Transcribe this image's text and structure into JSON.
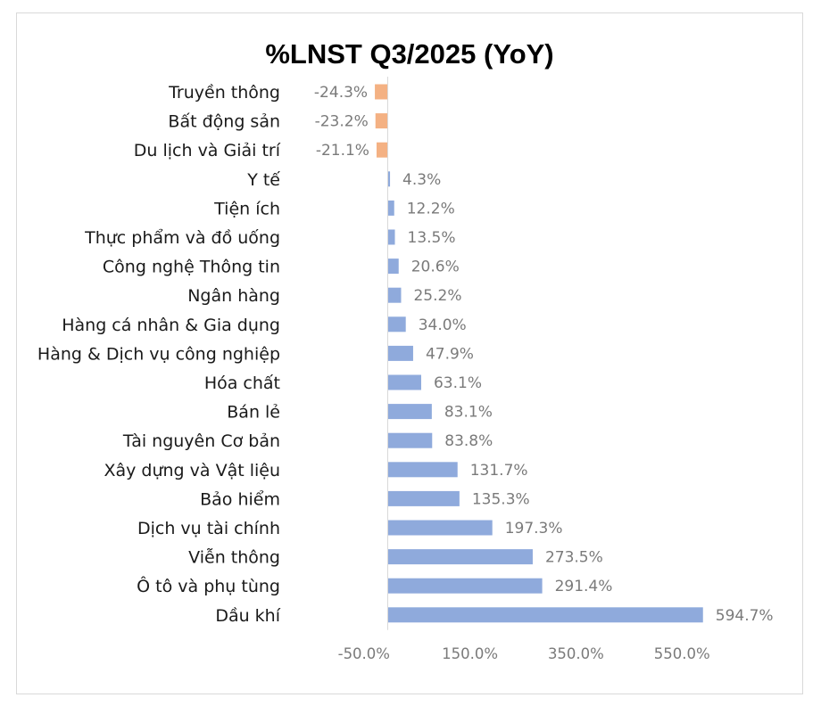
{
  "chart_data": {
    "type": "bar",
    "orientation": "horizontal",
    "title": "%LNST Q3/2025 (YoY)",
    "categories": [
      "Truyền thông",
      "Bất động sản",
      "Du lịch và Giải trí",
      "Y tế",
      "Tiện ích",
      "Thực phẩm và đồ uống",
      "Công nghệ Thông tin",
      "Ngân hàng",
      "Hàng cá nhân & Gia dụng",
      "Hàng & Dịch vụ công nghiệp",
      "Hóa chất",
      "Bán lẻ",
      "Tài nguyên Cơ bản",
      "Xây dựng và Vật liệu",
      "Bảo hiểm",
      "Dịch vụ tài chính",
      "Viễn thông",
      "Ô tô và phụ tùng",
      "Dầu khí"
    ],
    "values": [
      -24.3,
      -23.2,
      -21.1,
      4.3,
      12.2,
      13.5,
      20.6,
      25.2,
      34.0,
      47.9,
      63.1,
      83.1,
      83.8,
      131.7,
      135.3,
      197.3,
      273.5,
      291.4,
      594.7
    ],
    "value_labels": [
      "-24.3%",
      "-23.2%",
      "-21.1%",
      "4.3%",
      "12.2%",
      "13.5%",
      "20.6%",
      "25.2%",
      "34.0%",
      "47.9%",
      "63.1%",
      "83.1%",
      "83.8%",
      "131.7%",
      "135.3%",
      "197.3%",
      "273.5%",
      "291.4%",
      "594.7%"
    ],
    "xticks": [
      "-50.0%",
      "150.0%",
      "350.0%",
      "550.0%"
    ],
    "xtick_values": [
      -50,
      150,
      350,
      550
    ],
    "xlim": [
      -50,
      650
    ],
    "xlabel": "",
    "ylabel": "",
    "grid": false,
    "legend": "none",
    "colors": {
      "positive": "#8faadc",
      "negative": "#f4b183"
    }
  }
}
